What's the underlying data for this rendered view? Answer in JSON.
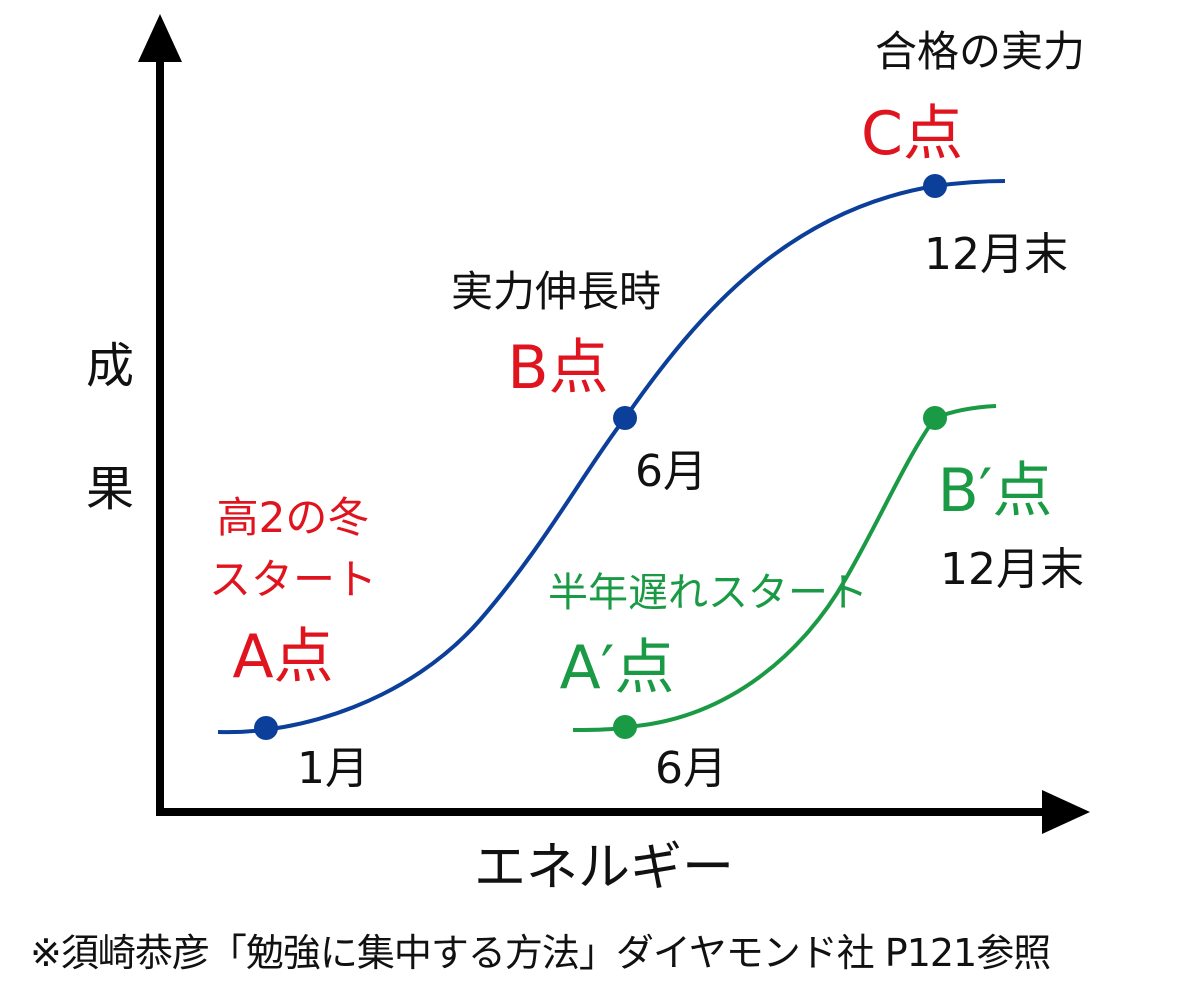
{
  "axes": {
    "y_label_chars": [
      "成",
      "果"
    ],
    "x_label": "エネルギー"
  },
  "colors": {
    "blue_curve": "#0b3f9a",
    "green_curve": "#1a9a44",
    "red_text": "#e0141e",
    "black_text": "#111111"
  },
  "blue": {
    "a_note_line1": "高2の冬",
    "a_note_line2": "スタート",
    "a_point": "A点",
    "a_month": "1月",
    "b_note": "実力伸長時",
    "b_point": "B点",
    "b_month": "6月",
    "c_note": "合格の実力",
    "c_point": "C点",
    "c_month": "12月末"
  },
  "green": {
    "a_note": "半年遅れスタート",
    "a_point": "A′点",
    "a_month": "6月",
    "b_point": "B′点",
    "b_month": "12月末"
  },
  "source": "※須崎恭彦「勉強に集中する方法」ダイヤモンド社 P121参照"
}
